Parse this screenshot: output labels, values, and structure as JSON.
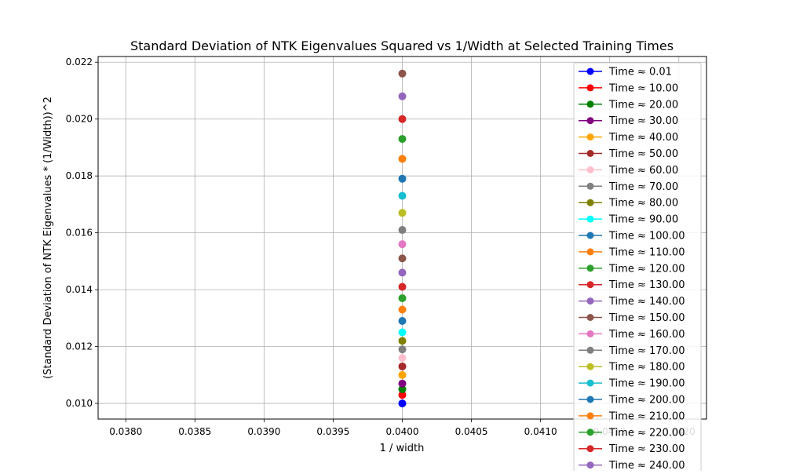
{
  "chart_data": {
    "type": "scatter",
    "title": "Standard Deviation of NTK Eigenvalues Squared vs 1/Width at Selected Training Times",
    "xlabel": "1 / width",
    "ylabel": "(Standard Deviation of NTK Eigenvalues * (1/Width))^2",
    "xlim": [
      0.0378,
      0.0422
    ],
    "ylim": [
      0.00945,
      0.0222
    ],
    "xticks": [
      "0.0380",
      "0.0385",
      "0.0390",
      "0.0395",
      "0.0400",
      "0.0405",
      "0.0410",
      "0.0415",
      "0.0420"
    ],
    "yticks": [
      "0.010",
      "0.012",
      "0.014",
      "0.016",
      "0.018",
      "0.020",
      "0.022"
    ],
    "grid": true,
    "legend_position": "upper-right",
    "x_value": 0.04,
    "series": [
      {
        "name": "Time ≈ 0.01",
        "color": "#0000ff",
        "x": [
          0.04
        ],
        "y": [
          0.01
        ]
      },
      {
        "name": "Time ≈ 10.00",
        "color": "#ff0000",
        "x": [
          0.04
        ],
        "y": [
          0.0103
        ]
      },
      {
        "name": "Time ≈ 20.00",
        "color": "#008000",
        "x": [
          0.04
        ],
        "y": [
          0.0105
        ]
      },
      {
        "name": "Time ≈ 30.00",
        "color": "#800080",
        "x": [
          0.04
        ],
        "y": [
          0.0107
        ]
      },
      {
        "name": "Time ≈ 40.00",
        "color": "#ffa500",
        "x": [
          0.04
        ],
        "y": [
          0.011
        ]
      },
      {
        "name": "Time ≈ 50.00",
        "color": "#a52a2a",
        "x": [
          0.04
        ],
        "y": [
          0.0113
        ]
      },
      {
        "name": "Time ≈ 60.00",
        "color": "#ffc0cb",
        "x": [
          0.04
        ],
        "y": [
          0.0116
        ]
      },
      {
        "name": "Time ≈ 70.00",
        "color": "#808080",
        "x": [
          0.04
        ],
        "y": [
          0.0119
        ]
      },
      {
        "name": "Time ≈ 80.00",
        "color": "#808000",
        "x": [
          0.04
        ],
        "y": [
          0.0122
        ]
      },
      {
        "name": "Time ≈ 90.00",
        "color": "#00ffff",
        "x": [
          0.04
        ],
        "y": [
          0.0125
        ]
      },
      {
        "name": "Time ≈ 100.00",
        "color": "#1f77b4",
        "x": [
          0.04
        ],
        "y": [
          0.0129
        ]
      },
      {
        "name": "Time ≈ 110.00",
        "color": "#ff7f0e",
        "x": [
          0.04
        ],
        "y": [
          0.0133
        ]
      },
      {
        "name": "Time ≈ 120.00",
        "color": "#2ca02c",
        "x": [
          0.04
        ],
        "y": [
          0.0137
        ]
      },
      {
        "name": "Time ≈ 130.00",
        "color": "#d62728",
        "x": [
          0.04
        ],
        "y": [
          0.0141
        ]
      },
      {
        "name": "Time ≈ 140.00",
        "color": "#9467bd",
        "x": [
          0.04
        ],
        "y": [
          0.0146
        ]
      },
      {
        "name": "Time ≈ 150.00",
        "color": "#8c564b",
        "x": [
          0.04
        ],
        "y": [
          0.0151
        ]
      },
      {
        "name": "Time ≈ 160.00",
        "color": "#e377c2",
        "x": [
          0.04
        ],
        "y": [
          0.0156
        ]
      },
      {
        "name": "Time ≈ 170.00",
        "color": "#7f7f7f",
        "x": [
          0.04
        ],
        "y": [
          0.0161
        ]
      },
      {
        "name": "Time ≈ 180.00",
        "color": "#bcbd22",
        "x": [
          0.04
        ],
        "y": [
          0.0167
        ]
      },
      {
        "name": "Time ≈ 190.00",
        "color": "#17becf",
        "x": [
          0.04
        ],
        "y": [
          0.0173
        ]
      },
      {
        "name": "Time ≈ 200.00",
        "color": "#1f77b4",
        "x": [
          0.04
        ],
        "y": [
          0.0179
        ]
      },
      {
        "name": "Time ≈ 210.00",
        "color": "#ff7f0e",
        "x": [
          0.04
        ],
        "y": [
          0.0186
        ]
      },
      {
        "name": "Time ≈ 220.00",
        "color": "#2ca02c",
        "x": [
          0.04
        ],
        "y": [
          0.0193
        ]
      },
      {
        "name": "Time ≈ 230.00",
        "color": "#d62728",
        "x": [
          0.04
        ],
        "y": [
          0.02
        ]
      },
      {
        "name": "Time ≈ 240.00",
        "color": "#9467bd",
        "x": [
          0.04
        ],
        "y": [
          0.0208
        ]
      },
      {
        "name": "",
        "color": "#8c564b",
        "x": [
          0.04
        ],
        "y": [
          0.0216
        ]
      }
    ]
  }
}
